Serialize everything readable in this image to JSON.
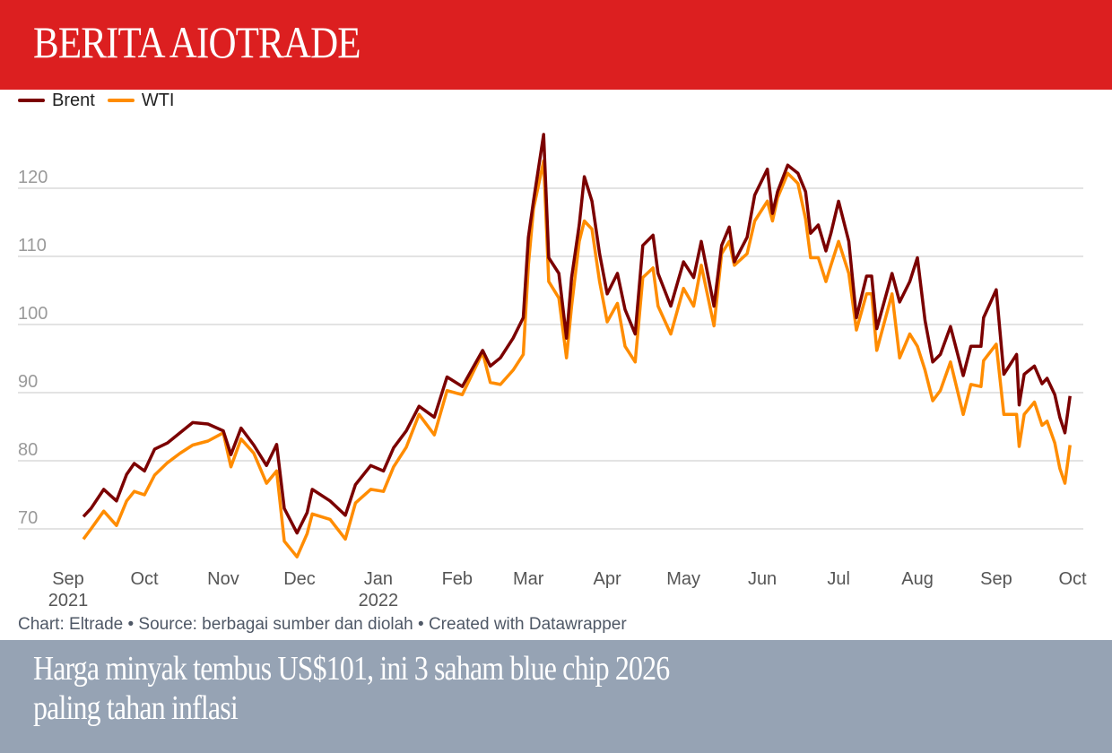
{
  "header": {
    "brand": "BERITA AIOTRADE"
  },
  "headline": {
    "line1": "Harga minyak tembus US$101, ini 3 saham blue chip 2026",
    "line2": "paling tahan inflasi"
  },
  "footer": {
    "credit": "Chart: Eltrade • Source: berbagai sumber dan diolah • Created with Datawrapper"
  },
  "colors": {
    "header_bg": "#dc1f20",
    "brent": "#7b0000",
    "wti": "#ff8c00",
    "overlay": "#94a0b2"
  },
  "chart_data": {
    "type": "line",
    "title": "",
    "xlabel": "",
    "ylabel": "",
    "ylim": [
      65,
      130
    ],
    "yticks": [
      70,
      80,
      90,
      100,
      110,
      120
    ],
    "xticks": [
      {
        "date": "2021-09-01",
        "label": "Sep",
        "year": "2021"
      },
      {
        "date": "2021-10-01",
        "label": "Oct"
      },
      {
        "date": "2021-11-01",
        "label": "Nov"
      },
      {
        "date": "2021-12-01",
        "label": "Dec"
      },
      {
        "date": "2022-01-01",
        "label": "Jan",
        "year": "2022"
      },
      {
        "date": "2022-02-01",
        "label": "Feb"
      },
      {
        "date": "2022-03-01",
        "label": "Mar"
      },
      {
        "date": "2022-04-01",
        "label": "Apr"
      },
      {
        "date": "2022-05-01",
        "label": "May"
      },
      {
        "date": "2022-06-01",
        "label": "Jun"
      },
      {
        "date": "2022-07-01",
        "label": "Jul"
      },
      {
        "date": "2022-08-01",
        "label": "Aug"
      },
      {
        "date": "2022-09-01",
        "label": "Sep"
      },
      {
        "date": "2022-10-01",
        "label": "Oct"
      }
    ],
    "grid": true,
    "legend": "top-left",
    "x": [
      "2021-09-07",
      "2021-09-10",
      "2021-09-15",
      "2021-09-20",
      "2021-09-24",
      "2021-09-27",
      "2021-10-01",
      "2021-10-05",
      "2021-10-10",
      "2021-10-15",
      "2021-10-20",
      "2021-10-26",
      "2021-11-01",
      "2021-11-04",
      "2021-11-08",
      "2021-11-13",
      "2021-11-18",
      "2021-11-22",
      "2021-11-25",
      "2021-11-30",
      "2021-12-04",
      "2021-12-06",
      "2021-12-13",
      "2021-12-19",
      "2021-12-23",
      "2021-12-29",
      "2022-01-03",
      "2022-01-07",
      "2022-01-12",
      "2022-01-17",
      "2022-01-23",
      "2022-01-28",
      "2022-02-03",
      "2022-02-11",
      "2022-02-14",
      "2022-02-18",
      "2022-02-23",
      "2022-02-27",
      "2022-03-01",
      "2022-03-03",
      "2022-03-07",
      "2022-03-09",
      "2022-03-13",
      "2022-03-16",
      "2022-03-18",
      "2022-03-21",
      "2022-03-23",
      "2022-03-26",
      "2022-03-29",
      "2022-04-01",
      "2022-04-05",
      "2022-04-08",
      "2022-04-12",
      "2022-04-15",
      "2022-04-19",
      "2022-04-21",
      "2022-04-26",
      "2022-05-01",
      "2022-05-05",
      "2022-05-08",
      "2022-05-13",
      "2022-05-16",
      "2022-05-19",
      "2022-05-21",
      "2022-05-26",
      "2022-05-29",
      "2022-06-03",
      "2022-06-05",
      "2022-06-07",
      "2022-06-11",
      "2022-06-15",
      "2022-06-18",
      "2022-06-20",
      "2022-06-23",
      "2022-06-26",
      "2022-06-28",
      "2022-07-01",
      "2022-07-05",
      "2022-07-08",
      "2022-07-12",
      "2022-07-14",
      "2022-07-16",
      "2022-07-22",
      "2022-07-25",
      "2022-07-29",
      "2022-08-01",
      "2022-08-04",
      "2022-08-07",
      "2022-08-10",
      "2022-08-14",
      "2022-08-19",
      "2022-08-22",
      "2022-08-26",
      "2022-08-27",
      "2022-09-01",
      "2022-09-04",
      "2022-09-09",
      "2022-09-10",
      "2022-09-12",
      "2022-09-16",
      "2022-09-19",
      "2022-09-21",
      "2022-09-24",
      "2022-09-26",
      "2022-09-28",
      "2022-09-30"
    ],
    "series": [
      {
        "name": "Brent",
        "color": "#7b0000",
        "values": [
          71.8,
          73,
          75.8,
          74.1,
          78,
          79.6,
          78.5,
          81.7,
          82.6,
          84.1,
          85.6,
          85.4,
          84.4,
          80.9,
          84.8,
          82.3,
          79.3,
          82.4,
          73,
          69.4,
          72.4,
          75.8,
          74.1,
          72,
          76.5,
          79.3,
          78.5,
          81.9,
          84.4,
          88,
          86.4,
          92.3,
          90.9,
          96.2,
          93.9,
          95.1,
          98,
          101,
          112.8,
          118.1,
          127.9,
          109.8,
          107.5,
          98,
          106.9,
          114.6,
          121.7,
          118.1,
          110.4,
          104.5,
          107.5,
          102.2,
          98.6,
          111.6,
          113.1,
          107.5,
          102.7,
          109.2,
          106.9,
          112.2,
          102.7,
          111.6,
          114.3,
          109.2,
          112.8,
          119,
          122.8,
          116.3,
          119.5,
          123.4,
          122.2,
          119.5,
          113.4,
          114.6,
          110.8,
          113.4,
          118.1,
          112.2,
          101,
          107.1,
          107.1,
          99.4,
          107.5,
          103.3,
          106.3,
          109.8,
          100.6,
          94.5,
          95.6,
          99.7,
          92.5,
          96.8,
          96.8,
          101,
          105.1,
          92.7,
          95.6,
          88.2,
          92.7,
          93.9,
          91.3,
          92.1,
          89.7,
          86.4,
          84.1,
          89.5
        ]
      },
      {
        "name": "WTI",
        "color": "#ff8c00",
        "values": [
          68.5,
          70,
          72.6,
          70.5,
          74.1,
          75.5,
          75,
          77.9,
          79.7,
          81.1,
          82.3,
          82.9,
          84.1,
          79.1,
          83.2,
          81.1,
          76.7,
          78.5,
          68.2,
          65.9,
          69.3,
          72.2,
          71.4,
          68.5,
          73.8,
          75.8,
          75.5,
          79.1,
          82,
          86.8,
          83.8,
          90.3,
          89.7,
          95.9,
          91.5,
          91.2,
          93.3,
          95.6,
          108.7,
          117,
          124,
          106.3,
          103.9,
          95.1,
          102.7,
          112.2,
          115.2,
          114,
          106.3,
          100.4,
          103.1,
          96.8,
          94.5,
          106.9,
          108.3,
          102.7,
          98.6,
          105.3,
          102.7,
          108.7,
          99.8,
          110.4,
          112.2,
          108.7,
          110.4,
          115.2,
          118.1,
          115.2,
          118.6,
          122.2,
          120.7,
          115.5,
          109.8,
          109.8,
          106.3,
          108.7,
          112.2,
          107.5,
          99.2,
          104.5,
          104.5,
          96.2,
          104.5,
          95.1,
          98.6,
          96.8,
          93.3,
          88.8,
          90.3,
          94.5,
          86.8,
          91.2,
          90.9,
          94.7,
          97.1,
          86.8,
          86.8,
          82.1,
          86.8,
          88.6,
          85.2,
          85.8,
          82.6,
          78.9,
          76.7,
          82.3
        ]
      }
    ]
  }
}
